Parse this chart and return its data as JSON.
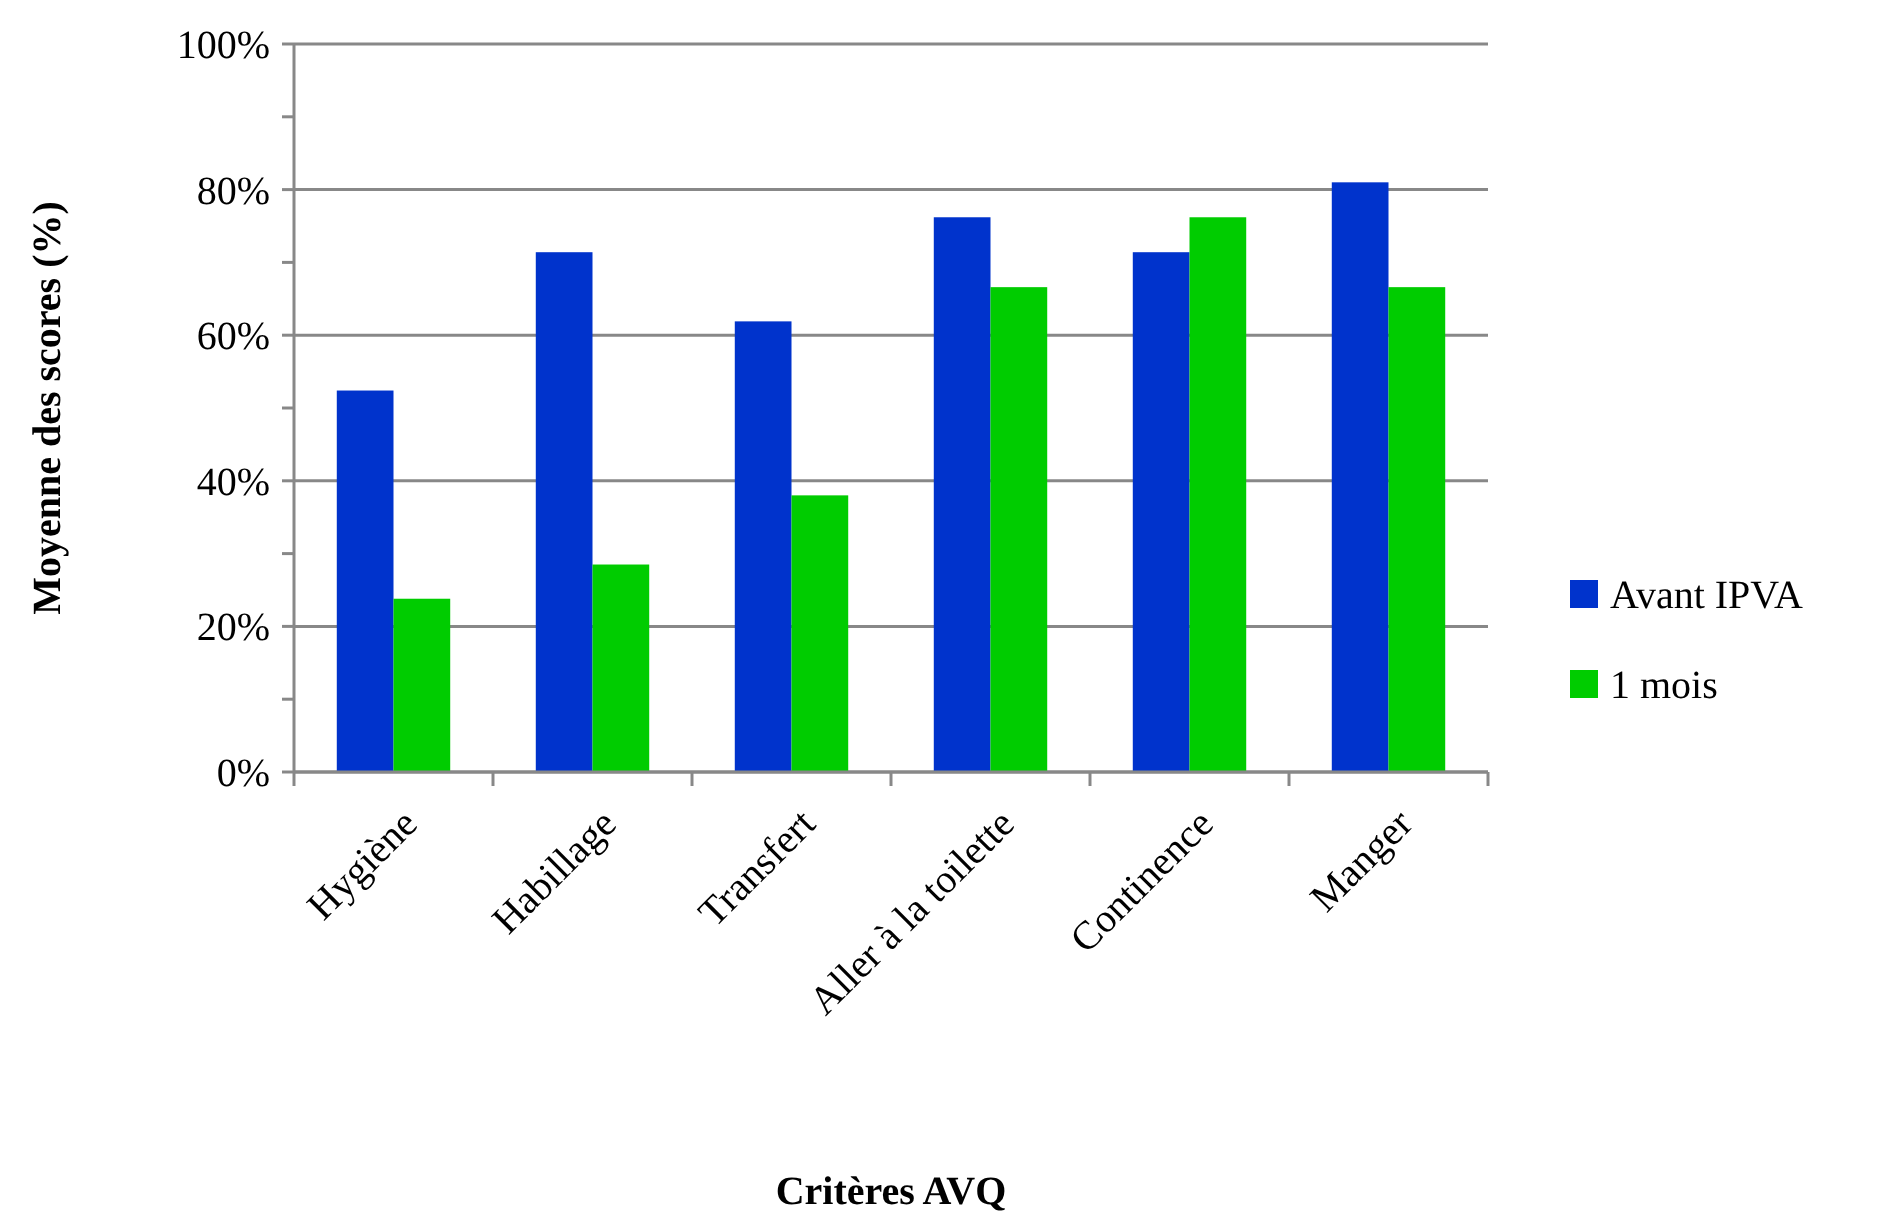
{
  "chart_data": {
    "type": "bar",
    "xlabel": "Critères AVQ",
    "ylabel": "Moyenne des scores (%)",
    "categories": [
      "Hygiène",
      "Habillage",
      "Transfert",
      "Aller à la toilette",
      "Continence",
      "Manger"
    ],
    "series": [
      {
        "name": "Avant IPVA",
        "color": "#0033cc",
        "values": [
          52.4,
          71.4,
          61.9,
          76.2,
          71.4,
          81.0
        ]
      },
      {
        "name": "1 mois",
        "color": "#00cc00",
        "values": [
          23.8,
          28.5,
          38.0,
          66.6,
          76.2,
          66.6
        ]
      }
    ],
    "ylim": [
      0,
      100
    ],
    "yticks": [
      {
        "value": 0,
        "label": "0%"
      },
      {
        "value": 10,
        "label": null
      },
      {
        "value": 20,
        "label": "20%"
      },
      {
        "value": 30,
        "label": null
      },
      {
        "value": 40,
        "label": "40%"
      },
      {
        "value": 50,
        "label": null
      },
      {
        "value": 60,
        "label": "60%"
      },
      {
        "value": 70,
        "label": null
      },
      {
        "value": 80,
        "label": "80%"
      },
      {
        "value": 90,
        "label": null
      },
      {
        "value": 100,
        "label": "100%"
      }
    ],
    "grid": "y",
    "legend": "right"
  }
}
